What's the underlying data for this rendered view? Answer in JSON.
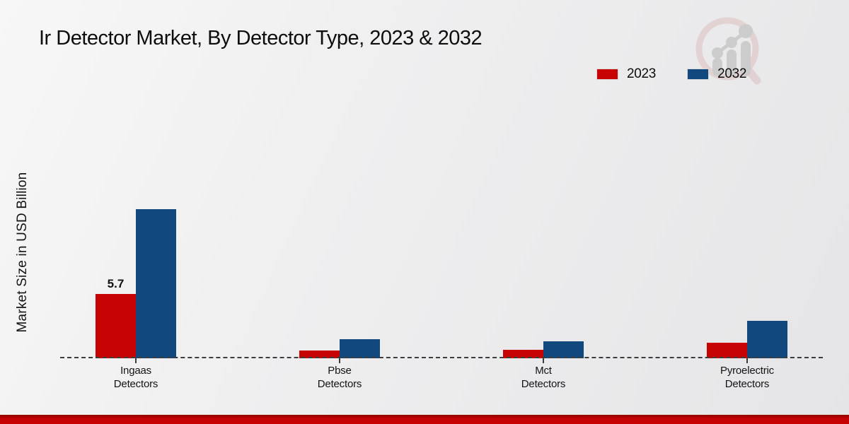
{
  "watermark": {
    "icon": "magnifier-growth-chart-logo"
  },
  "colors": {
    "accent_red": "#c80303",
    "accent_blue": "#11497e",
    "bottom_strip": "#c40202",
    "baseline": "#3d3d3d",
    "watermark_ring": "#d9b6b6",
    "watermark_gray": "#c7c7c7"
  },
  "chart_data": {
    "type": "bar",
    "title": "Ir Detector Market, By Detector Type, 2023 & 2032",
    "xlabel": "",
    "ylabel": "Market Size in USD Billion",
    "ylim": [
      0,
      14
    ],
    "grid": false,
    "baseline_style": "dashed",
    "legend_position": "top-right",
    "categories": [
      "Ingaas\nDetectors",
      "Pbse\nDetectors",
      "Mct\nDetectors",
      "Pyroelectric\nDetectors"
    ],
    "series": [
      {
        "name": "2023",
        "color": "#c80303",
        "values": [
          5.7,
          0.7,
          0.75,
          1.4
        ],
        "data_labels": [
          "5.7",
          null,
          null,
          null
        ]
      },
      {
        "name": "2032",
        "color": "#11497e",
        "values": [
          13.2,
          1.7,
          1.5,
          3.3
        ],
        "data_labels": [
          null,
          null,
          null,
          null
        ]
      }
    ]
  }
}
